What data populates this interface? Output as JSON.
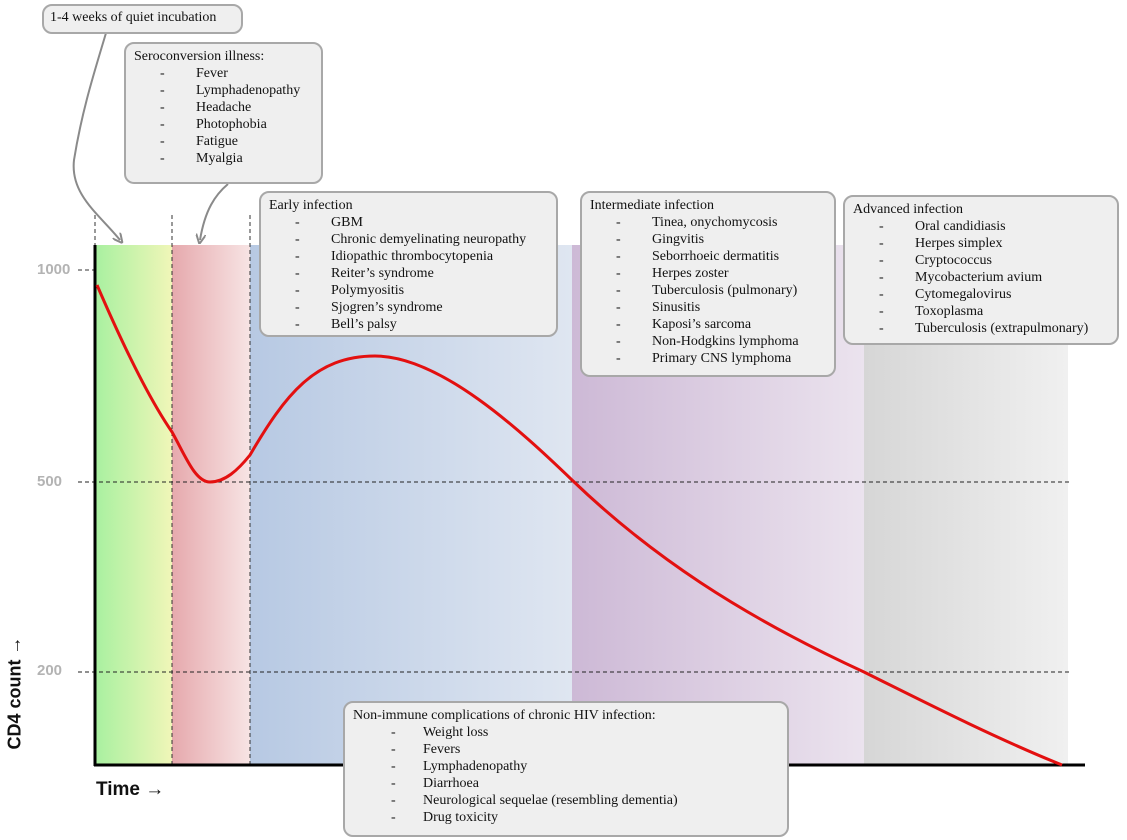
{
  "axes": {
    "x_label": "Time →",
    "y_label": "CD4 count →",
    "y_ticks": [
      "1000",
      "500",
      "200"
    ]
  },
  "phases": [
    {
      "name": "incubation",
      "color_start": "#a8f0a0",
      "color_end": "#f0f6b8"
    },
    {
      "name": "seroconversion",
      "color_start": "#e6a9ad",
      "color_end": "#f7e4e4"
    },
    {
      "name": "early",
      "color_start": "#b7c9e3",
      "color_end": "#dfe6f1"
    },
    {
      "name": "intermediate",
      "color_start": "#cdb9d6",
      "color_end": "#ebe3ee"
    },
    {
      "name": "advanced",
      "color_start": "#d6d6d6",
      "color_end": "#f0f0f0"
    }
  ],
  "curve_color": "#e31010",
  "callouts": {
    "incubation": {
      "title": "1-4 weeks of quiet incubation"
    },
    "seroconversion": {
      "title": "Seroconversion illness:",
      "items": [
        "Fever",
        "Lymphadenopathy",
        "Headache",
        "Photophobia",
        "Fatigue",
        "Myalgia"
      ]
    },
    "early": {
      "title": "Early infection",
      "items": [
        "GBM",
        "Chronic demyelinating neuropathy",
        "Idiopathic thrombocytopenia",
        "Reiter’s syndrome",
        "Polymyositis",
        "Sjogren’s syndrome",
        "Bell’s palsy"
      ]
    },
    "intermediate": {
      "title": "Intermediate infection",
      "items": [
        "Tinea, onychomycosis",
        "Gingvitis",
        "Seborrhoeic dermatitis",
        "Herpes zoster",
        "Tuberculosis (pulmonary)",
        "Sinusitis",
        "Kaposi’s sarcoma",
        "Non-Hodgkins lymphoma",
        "Primary CNS lymphoma"
      ]
    },
    "advanced": {
      "title": "Advanced infection",
      "items": [
        "Oral candidiasis",
        "Herpes simplex",
        "Cryptococcus",
        "Mycobacterium avium",
        "Cytomegalovirus",
        "Toxoplasma",
        "Tuberculosis (extrapulmonary)"
      ]
    },
    "non_immune": {
      "title": "Non-immune complications of chronic HIV infection:",
      "items": [
        "Weight loss",
        "Fevers",
        "Lymphadenopathy",
        "Diarrhoea",
        "Neurological sequelae (resembling dementia)",
        "Drug toxicity"
      ]
    }
  },
  "list_dash": "-"
}
